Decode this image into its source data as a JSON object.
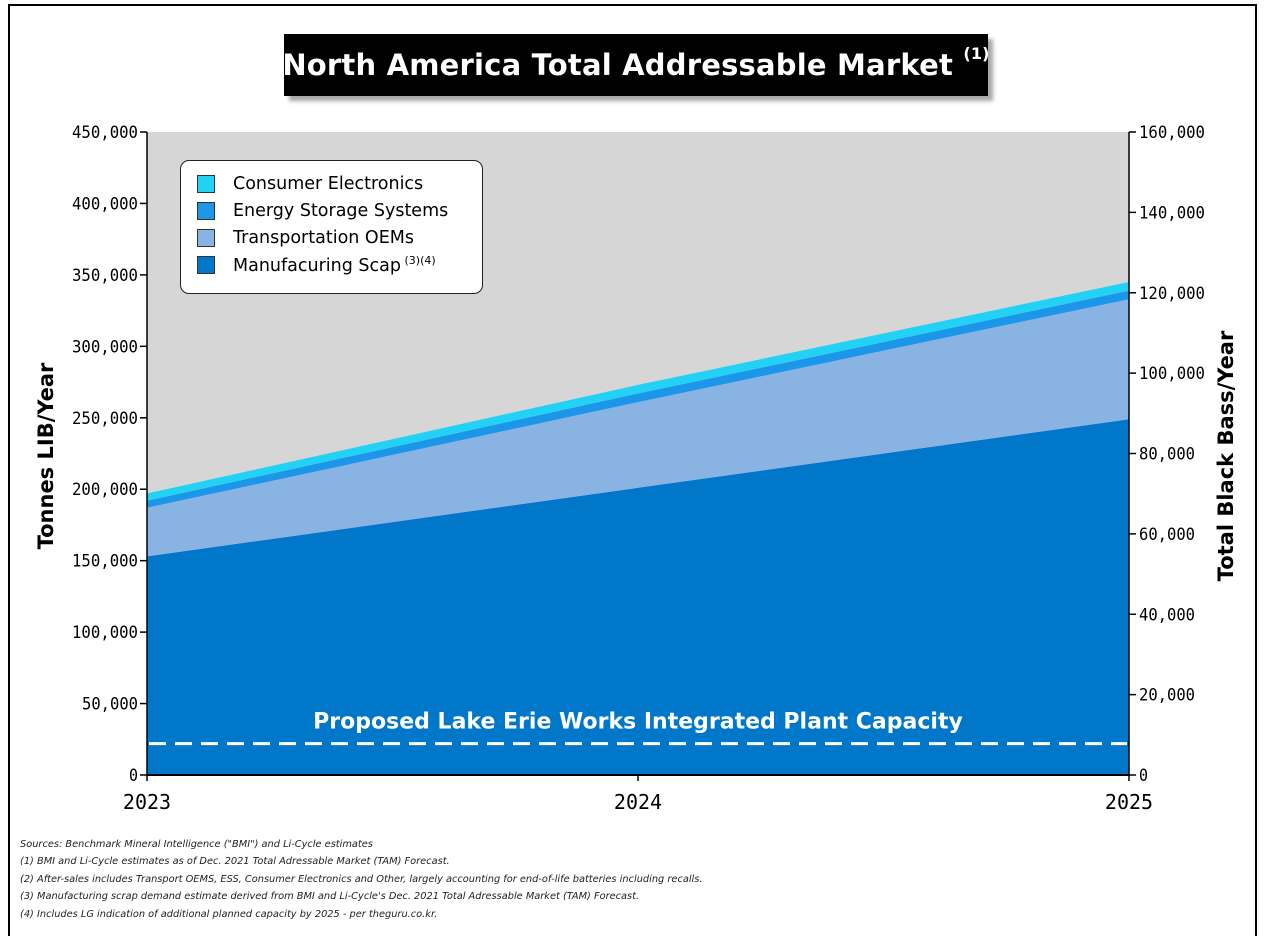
{
  "chart_data": {
    "type": "area",
    "title": "North America Total Addressable Market",
    "title_superscript": "(1)",
    "ylabel": "Tonnes LIB/Year",
    "ylabel_right": "Total Black Bass/Year",
    "categories": [
      "2023",
      "2024",
      "2025"
    ],
    "x": [
      2023,
      2024,
      2025
    ],
    "ylim": [
      0,
      450000
    ],
    "ylim_right": [
      0,
      160000
    ],
    "yticks": [
      "0",
      "50,000",
      "100,000",
      "150,000",
      "200,000",
      "250,000",
      "300,000",
      "350,000",
      "400,000",
      "450,000"
    ],
    "yticks_right": [
      "0",
      "20,000",
      "40,000",
      "60,000",
      "80,000",
      "100,000",
      "120,000",
      "140,000",
      "160,000"
    ],
    "stacked": true,
    "series": [
      {
        "name": "Manufacuring Scap",
        "name_superscript": "(3)(4)",
        "color": "#0077c8",
        "values": [
          153000,
          201000,
          249000
        ]
      },
      {
        "name": "Transportation OEMs",
        "color": "#89b3e3",
        "values": [
          34000,
          60000,
          84000
        ]
      },
      {
        "name": "Energy Storage Systems",
        "color": "#1b96e8",
        "values": [
          5000,
          6000,
          6000
        ]
      },
      {
        "name": "Consumer Electronics",
        "color": "#22d2f4",
        "values": [
          5000,
          6000,
          6000
        ]
      }
    ],
    "background_color": "#d6d6d6",
    "legend_position": "top-left",
    "legend_order": [
      "Consumer Electronics",
      "Energy Storage Systems",
      "Transportation OEMs",
      "Manufacuring Scap"
    ],
    "reference_line": {
      "label": "Proposed Lake Erie Works Integrated Plant Capacity",
      "value": 22000,
      "style": "dashed",
      "color": "#ffffff"
    },
    "grid": false
  },
  "notes": [
    "Sources: Benchmark Mineral Intelligence (\"BMI\") and Li-Cycle estimates",
    "(1) BMI and Li-Cycle estimates as of Dec. 2021 Total Adressable Market (TAM) Forecast.",
    "(2) After-sales includes Transport OEMS, ESS, Consumer Electronics and Other, largely accounting for end-of-life batteries including recalls.",
    "(3) Manufacturing scrap demand estimate derived from BMI and Li-Cycle's Dec. 2021 Total Adressable Market (TAM) Forecast.",
    "(4) Includes LG indication of additional planned capacity by 2025 - per theguru.co.kr."
  ]
}
